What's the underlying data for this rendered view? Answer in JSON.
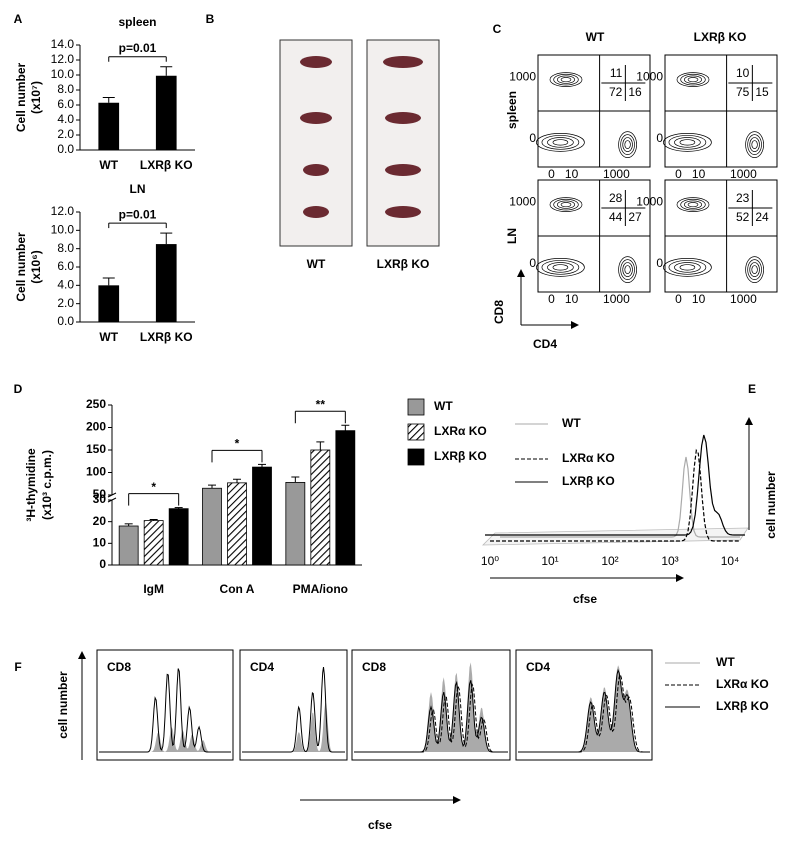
{
  "panel_letters": [
    "A",
    "B",
    "C",
    "D",
    "E",
    "F"
  ],
  "chart_data": [
    {
      "type": "bar",
      "title": "spleen",
      "y_label": [
        "Cell number",
        "(x10⁷)"
      ],
      "categories": [
        "WT",
        "LXRβ KO"
      ],
      "values": [
        6.3,
        9.9
      ],
      "errors": [
        0.7,
        1.2
      ],
      "color": "#000000",
      "ylim": [
        0,
        14
      ],
      "yticks": [
        {
          "value": 0,
          "label": "0.0"
        },
        {
          "value": 2,
          "label": "2.0"
        },
        {
          "value": 4,
          "label": "4.0"
        },
        {
          "value": 6,
          "label": "6.0"
        },
        {
          "value": 8,
          "label": "8.0"
        },
        {
          "value": 10,
          "label": "10.0"
        },
        {
          "value": 12,
          "label": "12.0"
        },
        {
          "value": 14,
          "label": "14.0"
        }
      ],
      "annotation": "p=0.01"
    },
    {
      "type": "bar",
      "title": "LN",
      "y_label": [
        "Cell number",
        "(x10⁶)"
      ],
      "categories": [
        "WT",
        "LXRβ KO"
      ],
      "values": [
        4.0,
        8.5
      ],
      "errors": [
        0.8,
        1.2
      ],
      "color": "#000000",
      "ylim": [
        0,
        12
      ],
      "yticks": [
        {
          "value": 0,
          "label": "0.0"
        },
        {
          "value": 2,
          "label": "2.0"
        },
        {
          "value": 4,
          "label": "4.0"
        },
        {
          "value": 6,
          "label": "6.0"
        },
        {
          "value": 8,
          "label": "8.0"
        },
        {
          "value": 10,
          "label": "10.0"
        },
        {
          "value": 12,
          "label": "12.0"
        }
      ],
      "annotation": "p=0.01"
    },
    {
      "type": "grouped_bar",
      "y_label": [
        "³H-thymidine",
        "(x10³ c.p.m.)"
      ],
      "categories": [
        "IgM",
        "Con A",
        "PMA/iono"
      ],
      "series": [
        {
          "name": "WT",
          "color": "#999999",
          "values": [
            18,
            65,
            78
          ],
          "errors": [
            1,
            7,
            12
          ]
        },
        {
          "name": "LXRα KO",
          "color": "#ffffff",
          "pattern": "hatch",
          "values": [
            20.5,
            77,
            150
          ],
          "errors": [
            0.5,
            8,
            18
          ]
        },
        {
          "name": "LXRβ KO",
          "color": "#000000",
          "values": [
            26,
            112,
            193
          ],
          "errors": [
            0.5,
            6,
            12
          ]
        }
      ],
      "ylim": [
        0,
        250
      ],
      "ybreak": [
        30,
        50
      ],
      "yticks": [
        0,
        10,
        20,
        30,
        50,
        100,
        150,
        200,
        250
      ],
      "significance": [
        "*",
        "*",
        "**"
      ]
    }
  ],
  "photo": {
    "labels": [
      "WT",
      "LXRβ KO"
    ]
  },
  "flow": {
    "columns": [
      "WT",
      "LXRβ KO"
    ],
    "rows": [
      "spleen",
      "LN"
    ],
    "quadrants": [
      [
        [
          11,
          72,
          16
        ],
        [
          10,
          75,
          15
        ]
      ],
      [
        [
          28,
          44,
          27
        ],
        [
          23,
          52,
          24
        ]
      ]
    ],
    "x_ticks": [
      0,
      10,
      1000
    ],
    "y_ticks": [
      1000,
      0
    ],
    "x_label": "CD4",
    "y_label": "CD8"
  },
  "histogram_overlay": {
    "legend": [
      "WT",
      "LXRα KO",
      "LXRβ KO"
    ],
    "x_ticks": [
      "10⁰",
      "10¹",
      "10²",
      "10³",
      "10⁴"
    ],
    "x_label": "cfse",
    "y_label": "cell number"
  },
  "division_profiles": {
    "panels": [
      "CD8",
      "CD4",
      "CD8",
      "CD4"
    ],
    "legend": [
      "WT",
      "LXRα KO",
      "LXRβ KO"
    ],
    "x_label": "cfse",
    "y_label": "cell number"
  }
}
